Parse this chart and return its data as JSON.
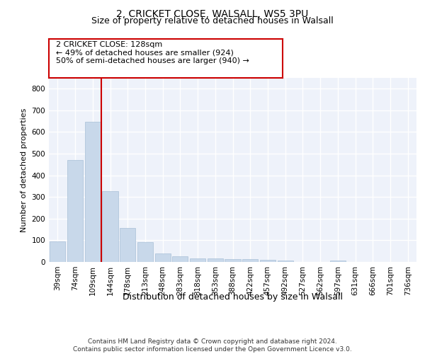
{
  "title1": "2, CRICKET CLOSE, WALSALL, WS5 3PU",
  "title2": "Size of property relative to detached houses in Walsall",
  "xlabel": "Distribution of detached houses by size in Walsall",
  "ylabel": "Number of detached properties",
  "categories": [
    "39sqm",
    "74sqm",
    "109sqm",
    "144sqm",
    "178sqm",
    "213sqm",
    "248sqm",
    "283sqm",
    "318sqm",
    "353sqm",
    "388sqm",
    "422sqm",
    "457sqm",
    "492sqm",
    "527sqm",
    "562sqm",
    "597sqm",
    "631sqm",
    "666sqm",
    "701sqm",
    "736sqm"
  ],
  "values": [
    95,
    470,
    648,
    328,
    158,
    92,
    40,
    25,
    17,
    16,
    14,
    14,
    10,
    7,
    0,
    0,
    8,
    0,
    0,
    0,
    0
  ],
  "bar_color": "#c8d8ea",
  "bar_edge_color": "#a8c0d6",
  "vline_x": 2.5,
  "vline_color": "#cc0000",
  "annotation_text": "2 CRICKET CLOSE: 128sqm\n← 49% of detached houses are smaller (924)\n50% of semi-detached houses are larger (940) →",
  "annotation_box_color": "#ffffff",
  "annotation_box_edge": "#cc0000",
  "ylim": [
    0,
    850
  ],
  "yticks": [
    0,
    100,
    200,
    300,
    400,
    500,
    600,
    700,
    800
  ],
  "background_color": "#eef2fa",
  "grid_color": "#ffffff",
  "footer": "Contains HM Land Registry data © Crown copyright and database right 2024.\nContains public sector information licensed under the Open Government Licence v3.0.",
  "title1_fontsize": 10,
  "title2_fontsize": 9,
  "xlabel_fontsize": 9,
  "ylabel_fontsize": 8,
  "tick_fontsize": 7.5,
  "annotation_fontsize": 8,
  "footer_fontsize": 6.5
}
